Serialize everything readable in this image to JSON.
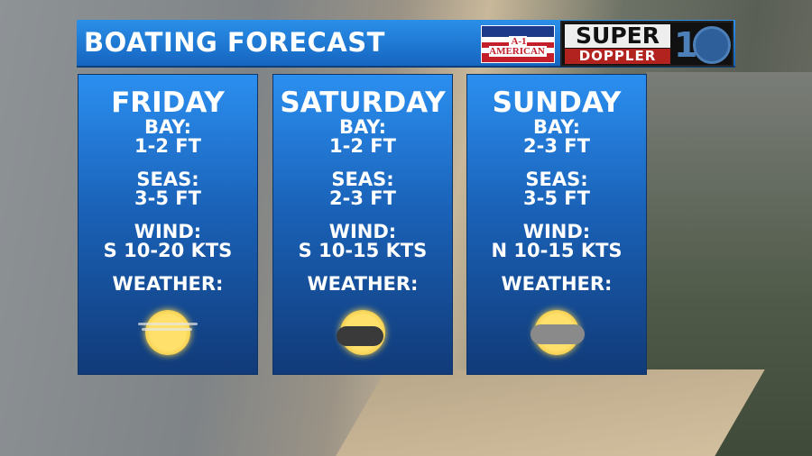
{
  "header": {
    "title": "BOATING FORECAST",
    "sponsor_logo": "A-1 AMERICAN",
    "station_logo_top": "SUPER",
    "station_logo_bottom": "DOPPLER",
    "station_number": "10"
  },
  "days": [
    {
      "day": "FRIDAY",
      "bay_label": "BAY:",
      "bay": "1-2 FT",
      "seas_label": "SEAS:",
      "seas": "3-5 FT",
      "wind_label": "WIND:",
      "wind": "S 10-20 KTS",
      "weather_label": "WEATHER:",
      "weather_icon": "hazy-sun-icon"
    },
    {
      "day": "SATURDAY",
      "bay_label": "BAY:",
      "bay": "1-2 FT",
      "seas_label": "SEAS:",
      "seas": "2-3 FT",
      "wind_label": "WIND:",
      "wind": "S 10-15 KTS",
      "weather_label": "WEATHER:",
      "weather_icon": "sun-thunderstorm-icon"
    },
    {
      "day": "SUNDAY",
      "bay_label": "BAY:",
      "bay": "2-3 FT",
      "seas_label": "SEAS:",
      "seas": "3-5 FT",
      "wind_label": "WIND:",
      "wind": "N 10-15 KTS",
      "weather_label": "WEATHER:",
      "weather_icon": "sun-rain-cloud-icon"
    }
  ],
  "colors": {
    "panel_top": "#2b8ff0",
    "panel_bottom": "#113a78",
    "header": "#1e78d6"
  }
}
